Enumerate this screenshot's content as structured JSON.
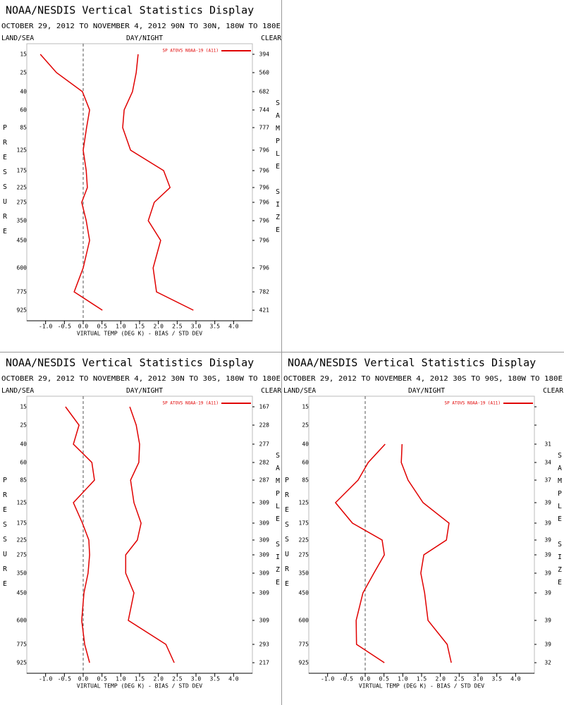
{
  "chart_data": [
    {
      "type": "line",
      "title": "NOAA/NESDIS Vertical Statistics Display",
      "subtitle": "OCTOBER 29, 2012 TO NOVEMBER 4, 2012  90N TO 30N, 180W TO 180E",
      "left_label": "LAND/SEA",
      "center_label": "DAY/NIGHT",
      "right_label": "CLEAR",
      "ylabel": "PRESSURE",
      "y2label": "SAMPLE SIZE",
      "xlabel": "VIRTUAL TEMP (DEG K) - BIAS / STD DEV",
      "categories": [
        "15",
        "25",
        "40",
        "60",
        "85",
        "125",
        "175",
        "225",
        "275",
        "350",
        "450",
        "600",
        "775",
        "925"
      ],
      "series": [
        {
          "name": "SP ATOVS NOAA-19 (A11)",
          "color": "#e00000",
          "values": [
            -1.14,
            -0.71,
            -0.02,
            0.17,
            0.09,
            0.0,
            0.08,
            0.11,
            -0.04,
            0.08,
            0.17,
            0.0,
            -0.24,
            0.51
          ],
          "std_dev": [
            1.46,
            1.41,
            1.31,
            1.09,
            1.05,
            1.26,
            2.14,
            2.31,
            1.89,
            1.73,
            2.06,
            1.86,
            1.95,
            2.93
          ]
        }
      ],
      "sample_size": [
        394,
        560,
        682,
        744,
        777,
        796,
        796,
        796,
        796,
        796,
        796,
        796,
        782,
        421
      ],
      "reference_line": 0,
      "xlim": [
        -1.5,
        4.5
      ],
      "xticks": [
        {
          "value": -1,
          "label": "-1.0"
        },
        {
          "value": -0.5,
          "label": "-0.5"
        },
        {
          "value": 0,
          "label": "0.0"
        },
        {
          "value": 0.5,
          "label": "0.5"
        },
        {
          "value": 1,
          "label": "1.0"
        },
        {
          "value": 1.5,
          "label": "1.5"
        },
        {
          "value": 2,
          "label": "2.0"
        },
        {
          "value": 2.5,
          "label": "2.5"
        },
        {
          "value": 3,
          "label": "3.0"
        },
        {
          "value": 3.5,
          "label": "3.5"
        },
        {
          "value": 4,
          "label": "4.0"
        }
      ]
    },
    {
      "type": "line",
      "title": "NOAA/NESDIS Vertical Statistics Display",
      "subtitle": "OCTOBER 29, 2012 TO NOVEMBER 4, 2012  30N TO 30S, 180W TO 180E",
      "left_label": "LAND/SEA",
      "center_label": "DAY/NIGHT",
      "right_label": "CLEAR",
      "ylabel": "PRESSURE",
      "y2label": "SAMPLE SIZE",
      "xlabel": "VIRTUAL TEMP (DEG K) - BIAS / STD DEV",
      "categories": [
        "15",
        "25",
        "40",
        "60",
        "85",
        "125",
        "175",
        "225",
        "275",
        "350",
        "450",
        "600",
        "775",
        "925"
      ],
      "series": [
        {
          "name": "SP ATOVS NOAA-19 (A11)",
          "color": "#e00000",
          "values": [
            -0.47,
            -0.11,
            -0.26,
            0.23,
            0.3,
            -0.26,
            -0.02,
            0.15,
            0.17,
            0.13,
            0.02,
            -0.04,
            0.04,
            0.17
          ],
          "std_dev": [
            1.24,
            1.41,
            1.5,
            1.48,
            1.26,
            1.35,
            1.54,
            1.44,
            1.13,
            1.13,
            1.35,
            1.2,
            2.2,
            2.42
          ]
        }
      ],
      "sample_size": [
        167,
        228,
        277,
        282,
        287,
        309,
        309,
        309,
        309,
        309,
        309,
        309,
        293,
        217
      ],
      "reference_line": 0,
      "xlim": [
        -1.5,
        4.5
      ],
      "xticks": [
        {
          "value": -1,
          "label": "-1.0"
        },
        {
          "value": -0.5,
          "label": "-0.5"
        },
        {
          "value": 0,
          "label": "0.0"
        },
        {
          "value": 0.5,
          "label": "0.5"
        },
        {
          "value": 1,
          "label": "1.0"
        },
        {
          "value": 1.5,
          "label": "1.5"
        },
        {
          "value": 2,
          "label": "2.0"
        },
        {
          "value": 2.5,
          "label": "2.5"
        },
        {
          "value": 3,
          "label": "3.0"
        },
        {
          "value": 3.5,
          "label": "3.5"
        },
        {
          "value": 4,
          "label": "4.0"
        }
      ]
    },
    {
      "type": "line",
      "title": "NOAA/NESDIS Vertical Statistics Display",
      "subtitle": "OCTOBER 29, 2012 TO NOVEMBER 4, 2012  30S TO 90S, 180W TO 180E",
      "left_label": "LAND/SEA",
      "center_label": "DAY/NIGHT",
      "right_label": "CLEAR",
      "ylabel": "PRESSURE",
      "y2label": "SAMPLE SIZE",
      "xlabel": "VIRTUAL TEMP (DEG K) - BIAS / STD DEV",
      "categories": [
        "15",
        "25",
        "40",
        "60",
        "85",
        "125",
        "175",
        "225",
        "275",
        "350",
        "450",
        "600",
        "775",
        "925"
      ],
      "series": [
        {
          "name": "SP ATOVS NOAA-19 (A11)",
          "color": "#e00000",
          "values": [
            null,
            null,
            0.53,
            0.08,
            -0.19,
            -0.79,
            -0.34,
            0.45,
            0.51,
            0.23,
            -0.06,
            -0.24,
            -0.23,
            0.51
          ],
          "std_dev": [
            null,
            null,
            0.98,
            0.96,
            1.14,
            1.54,
            2.23,
            2.16,
            1.56,
            1.48,
            1.58,
            1.67,
            2.18,
            2.29
          ]
        }
      ],
      "sample_size": [
        null,
        null,
        31,
        34,
        37,
        39,
        39,
        39,
        39,
        39,
        39,
        39,
        39,
        32
      ],
      "reference_line": 0,
      "xlim": [
        -1.5,
        4.5
      ],
      "xticks": [
        {
          "value": -1,
          "label": "-1.0"
        },
        {
          "value": -0.5,
          "label": "-0.5"
        },
        {
          "value": 0,
          "label": "0.0"
        },
        {
          "value": 0.5,
          "label": "0.5"
        },
        {
          "value": 1,
          "label": "1.0"
        },
        {
          "value": 1.5,
          "label": "1.5"
        },
        {
          "value": 2,
          "label": "2.0"
        },
        {
          "value": 2.5,
          "label": "2.5"
        },
        {
          "value": 3,
          "label": "3.0"
        },
        {
          "value": 3.5,
          "label": "3.5"
        },
        {
          "value": 4,
          "label": "4.0"
        }
      ]
    }
  ]
}
